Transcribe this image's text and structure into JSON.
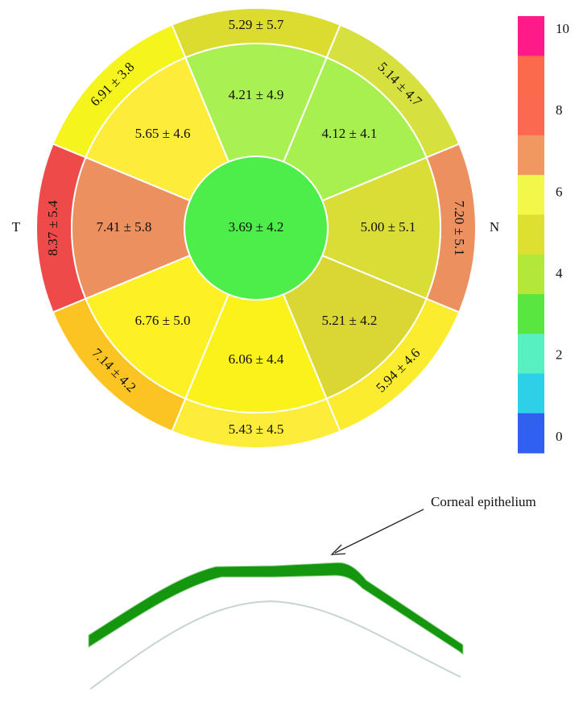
{
  "center": {
    "label": "3.69 ± 4.2",
    "color": "#4ded4a"
  },
  "inner_ring": [
    {
      "label": "5.00 ± 5.1",
      "color": "#d9dd36"
    },
    {
      "label": "4.12 ± 4.1",
      "color": "#a8f050"
    },
    {
      "label": "4.21 ± 4.9",
      "color": "#a9f052"
    },
    {
      "label": "5.65 ± 4.6",
      "color": "#fdec3a"
    },
    {
      "label": "7.41 ± 5.8",
      "color": "#ec9060"
    },
    {
      "label": "6.76 ± 5.0",
      "color": "#fdf024"
    },
    {
      "label": "6.06 ± 4.4",
      "color": "#fbf21c"
    },
    {
      "label": "5.21 ± 4.2",
      "color": "#dad634"
    }
  ],
  "outer_ring": [
    {
      "label": "7.20 ± 5.1",
      "color": "#ec9060"
    },
    {
      "label": "5.14 ± 4.7",
      "color": "#d6e03e"
    },
    {
      "label": "5.29 ± 5.7",
      "color": "#dcdc30"
    },
    {
      "label": "6.91 ± 3.8",
      "color": "#f5f41c"
    },
    {
      "label": "8.37 ± 5.4",
      "color": "#ef4a4a"
    },
    {
      "label": "7.14 ± 4.2",
      "color": "#fcc422"
    },
    {
      "label": "5.43 ± 4.5",
      "color": "#fdec3a"
    },
    {
      "label": "5.94 ± 4.6",
      "color": "#fbec30"
    }
  ],
  "side_labels": {
    "temporal": "T",
    "nasal": "N"
  },
  "colorbar": {
    "colors": [
      "#ff1a8a",
      "#fb6a4a",
      "#fb6a50",
      "#f0985f",
      "#f3f74a",
      "#dde030",
      "#b3e83a",
      "#5ae640",
      "#58f0c0",
      "#2ecfe8",
      "#3060f0"
    ],
    "labels": [
      "10",
      "8",
      "6",
      "4",
      "2",
      "0"
    ]
  },
  "annotation": "Corneal epithelium"
}
